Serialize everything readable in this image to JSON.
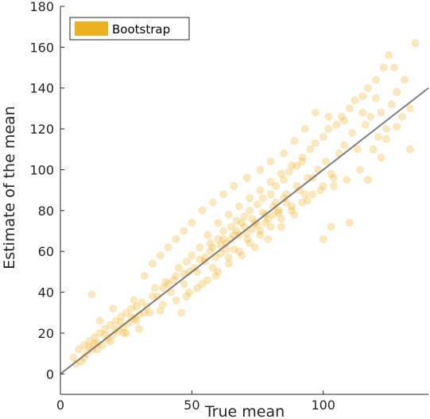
{
  "chart_data": {
    "type": "scatter",
    "xlabel": "True mean",
    "ylabel": "Estimate of the mean",
    "xlim": [
      0,
      140
    ],
    "ylim": [
      -10,
      180
    ],
    "xticks": [
      0,
      50,
      100
    ],
    "yticks": [
      0,
      20,
      40,
      60,
      80,
      100,
      120,
      140,
      160,
      180
    ],
    "grid": false,
    "legend": {
      "position": "top-left",
      "entries": [
        "Bootstrap"
      ]
    },
    "reference_line": {
      "from": [
        0,
        0
      ],
      "to": [
        140,
        140
      ],
      "color": "#7f7f7f"
    },
    "series": [
      {
        "name": "Bootstrap",
        "color": "#EDB120",
        "alpha": 0.3,
        "points": [
          [
            5,
            8
          ],
          [
            7,
            12
          ],
          [
            8,
            6
          ],
          [
            9,
            14
          ],
          [
            10,
            10
          ],
          [
            11,
            16
          ],
          [
            12,
            12
          ],
          [
            13,
            18
          ],
          [
            14,
            15
          ],
          [
            15,
            20
          ],
          [
            16,
            14
          ],
          [
            17,
            22
          ],
          [
            18,
            17
          ],
          [
            19,
            24
          ],
          [
            20,
            19
          ],
          [
            21,
            26
          ],
          [
            22,
            21
          ],
          [
            23,
            28
          ],
          [
            24,
            23
          ],
          [
            25,
            30
          ],
          [
            26,
            25
          ],
          [
            27,
            32
          ],
          [
            28,
            27
          ],
          [
            29,
            33
          ],
          [
            30,
            29
          ],
          [
            31,
            35
          ],
          [
            32,
            30
          ],
          [
            12,
            39
          ],
          [
            15,
            26
          ],
          [
            20,
            32
          ],
          [
            25,
            20
          ],
          [
            28,
            36
          ],
          [
            30,
            22
          ],
          [
            33,
            33
          ],
          [
            35,
            38
          ],
          [
            36,
            42
          ],
          [
            38,
            31
          ],
          [
            40,
            45
          ],
          [
            42,
            40
          ],
          [
            44,
            48
          ],
          [
            45,
            52
          ],
          [
            47,
            44
          ],
          [
            48,
            55
          ],
          [
            50,
            58
          ],
          [
            52,
            50
          ],
          [
            53,
            62
          ],
          [
            55,
            57
          ],
          [
            57,
            64
          ],
          [
            58,
            52
          ],
          [
            60,
            66
          ],
          [
            61,
            59
          ],
          [
            62,
            70
          ],
          [
            63,
            64
          ],
          [
            65,
            72
          ],
          [
            66,
            61
          ],
          [
            67,
            75
          ],
          [
            68,
            68
          ],
          [
            70,
            77
          ],
          [
            71,
            66
          ],
          [
            72,
            80
          ],
          [
            73,
            71
          ],
          [
            75,
            83
          ],
          [
            76,
            70
          ],
          [
            77,
            86
          ],
          [
            78,
            74
          ],
          [
            80,
            88
          ],
          [
            81,
            78
          ],
          [
            82,
            92
          ],
          [
            83,
            80
          ],
          [
            85,
            95
          ],
          [
            86,
            84
          ],
          [
            87,
            99
          ],
          [
            88,
            82
          ],
          [
            90,
            102
          ],
          [
            91,
            90
          ],
          [
            92,
            106
          ],
          [
            93,
            88
          ],
          [
            95,
            110
          ],
          [
            96,
            96
          ],
          [
            97,
            113
          ],
          [
            98,
            100
          ],
          [
            100,
            116
          ],
          [
            101,
            104
          ],
          [
            102,
            120
          ],
          [
            103,
            98
          ],
          [
            105,
            122
          ],
          [
            106,
            108
          ],
          [
            107,
            126
          ],
          [
            108,
            112
          ],
          [
            110,
            130
          ],
          [
            111,
            118
          ],
          [
            112,
            134
          ],
          [
            113,
            110
          ],
          [
            115,
            136
          ],
          [
            116,
            122
          ],
          [
            117,
            140
          ],
          [
            118,
            126
          ],
          [
            120,
            144
          ],
          [
            121,
            116
          ],
          [
            122,
            128
          ],
          [
            123,
            150
          ],
          [
            124,
            120
          ],
          [
            125,
            156
          ],
          [
            126,
            132
          ],
          [
            127,
            150
          ],
          [
            128,
            138
          ],
          [
            130,
            126
          ],
          [
            131,
            144
          ],
          [
            133,
            110
          ],
          [
            135,
            162
          ],
          [
            133,
            130
          ],
          [
            124,
            115
          ],
          [
            119,
            110
          ],
          [
            114,
            100
          ],
          [
            109,
            95
          ],
          [
            104,
            92
          ],
          [
            99,
            90
          ],
          [
            94,
            85
          ],
          [
            89,
            78
          ],
          [
            84,
            72
          ],
          [
            79,
            66
          ],
          [
            74,
            62
          ],
          [
            69,
            58
          ],
          [
            64,
            54
          ],
          [
            59,
            48
          ],
          [
            54,
            44
          ],
          [
            49,
            40
          ],
          [
            44,
            36
          ],
          [
            39,
            34
          ],
          [
            34,
            30
          ],
          [
            29,
            26
          ],
          [
            24,
            20
          ],
          [
            19,
            16
          ],
          [
            14,
            12
          ],
          [
            9,
            8
          ],
          [
            6,
            5
          ],
          [
            100,
            66
          ],
          [
            110,
            74
          ],
          [
            103,
            72
          ],
          [
            117,
            95
          ],
          [
            122,
            106
          ],
          [
            128,
            121
          ],
          [
            120,
            135
          ],
          [
            115,
            128
          ],
          [
            108,
            124
          ],
          [
            102,
            126
          ],
          [
            97,
            128
          ],
          [
            93,
            120
          ],
          [
            89,
            114
          ],
          [
            85,
            108
          ],
          [
            80,
            104
          ],
          [
            76,
            100
          ],
          [
            71,
            96
          ],
          [
            66,
            92
          ],
          [
            62,
            88
          ],
          [
            58,
            84
          ],
          [
            54,
            80
          ],
          [
            50,
            74
          ],
          [
            47,
            70
          ],
          [
            44,
            66
          ],
          [
            41,
            62
          ],
          [
            38,
            58
          ],
          [
            35,
            54
          ],
          [
            32,
            48
          ],
          [
            46,
            30
          ],
          [
            48,
            38
          ],
          [
            52,
            42
          ],
          [
            56,
            46
          ],
          [
            60,
            50
          ],
          [
            64,
            57
          ],
          [
            68,
            60
          ],
          [
            72,
            64
          ],
          [
            76,
            68
          ],
          [
            80,
            72
          ],
          [
            84,
            76
          ],
          [
            88,
            80
          ],
          [
            92,
            84
          ],
          [
            96,
            88
          ],
          [
            100,
            92
          ],
          [
            104,
            96
          ],
          [
            56,
            68
          ],
          [
            60,
            74
          ],
          [
            64,
            78
          ],
          [
            68,
            82
          ],
          [
            72,
            86
          ],
          [
            76,
            90
          ],
          [
            80,
            94
          ],
          [
            84,
            98
          ],
          [
            88,
            102
          ],
          [
            92,
            104
          ],
          [
            58,
            62
          ],
          [
            62,
            66
          ],
          [
            66,
            68
          ],
          [
            70,
            72
          ],
          [
            74,
            74
          ],
          [
            78,
            78
          ],
          [
            82,
            84
          ],
          [
            86,
            88
          ],
          [
            90,
            92
          ],
          [
            94,
            96
          ],
          [
            67,
            70
          ],
          [
            69,
            74
          ],
          [
            71,
            69
          ],
          [
            73,
            76
          ],
          [
            75,
            73
          ],
          [
            77,
            79
          ],
          [
            79,
            76
          ],
          [
            81,
            82
          ],
          [
            83,
            79
          ],
          [
            85,
            86
          ],
          [
            61,
            63
          ],
          [
            63,
            61
          ],
          [
            65,
            66
          ],
          [
            59,
            57
          ],
          [
            57,
            60
          ],
          [
            55,
            55
          ],
          [
            53,
            56
          ],
          [
            51,
            52
          ],
          [
            49,
            50
          ],
          [
            47,
            49
          ],
          [
            43,
            46
          ],
          [
            41,
            44
          ],
          [
            39,
            42
          ],
          [
            37,
            38
          ],
          [
            23,
            25
          ],
          [
            21,
            22
          ],
          [
            17,
            19
          ],
          [
            13,
            15
          ],
          [
            11,
            13
          ],
          [
            27,
            28
          ]
        ]
      }
    ]
  }
}
